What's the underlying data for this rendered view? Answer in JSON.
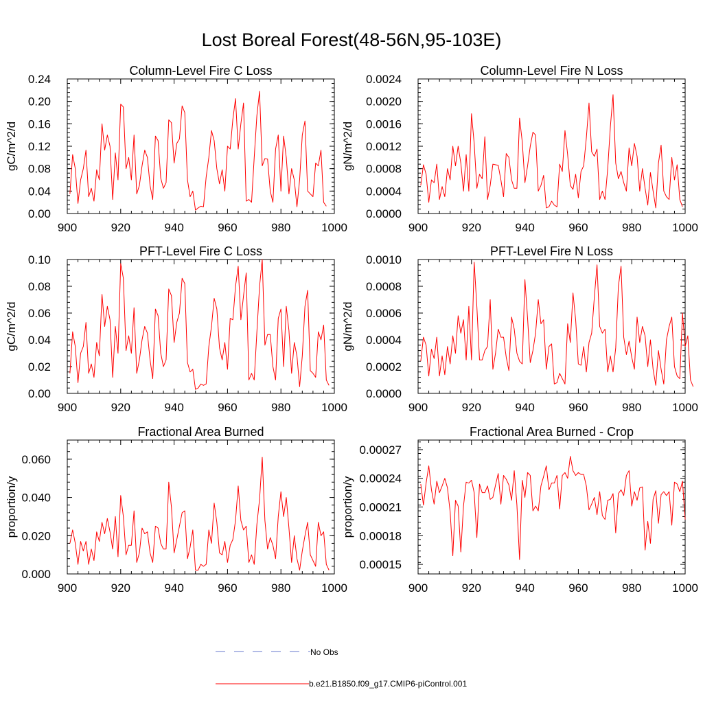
{
  "title": "Lost Boreal Forest(48-56N,95-103E)",
  "colors": {
    "model": "#ff0000",
    "obs": "#6677cc",
    "axis": "#000000"
  },
  "legend": {
    "obs_label": "No Obs",
    "model_label": "b.e21.B1850.f09_g17.CMIP6-piControl.001"
  },
  "chart_data": [
    {
      "type": "line",
      "title": "Column-Level Fire C Loss",
      "xlabel": "",
      "ylabel": "gC/m^2/d",
      "xlim": [
        900,
        1000
      ],
      "ylim": [
        0,
        0.24
      ],
      "xticks": [
        900,
        920,
        940,
        960,
        980,
        1000
      ],
      "xtick_labels": [
        "900",
        "920",
        "940",
        "960",
        "980",
        "1000"
      ],
      "yticks": [
        0,
        0.04,
        0.08,
        0.12,
        0.16,
        0.2,
        0.24
      ],
      "ytick_labels": [
        "0.00",
        "0.04",
        "0.08",
        "0.12",
        "0.16",
        "0.20",
        "0.24"
      ],
      "x_start": 901,
      "series": [
        {
          "name": "b.e21.B1850.f09_g17.CMIP6-piControl.001",
          "values": [
            0.035,
            0.105,
            0.08,
            0.018,
            0.06,
            0.08,
            0.113,
            0.03,
            0.045,
            0.022,
            0.078,
            0.06,
            0.16,
            0.113,
            0.14,
            0.12,
            0.025,
            0.108,
            0.06,
            0.195,
            0.19,
            0.08,
            0.1,
            0.06,
            0.14,
            0.035,
            0.05,
            0.085,
            0.113,
            0.1,
            0.05,
            0.025,
            0.138,
            0.13,
            0.063,
            0.045,
            0.055,
            0.167,
            0.162,
            0.09,
            0.125,
            0.133,
            0.192,
            0.18,
            0.06,
            0.03,
            0.04,
            0.006,
            0.01,
            0.013,
            0.012,
            0.065,
            0.1,
            0.148,
            0.13,
            0.08,
            0.053,
            0.078,
            0.04,
            0.12,
            0.115,
            0.168,
            0.205,
            0.115,
            0.16,
            0.197,
            0.022,
            0.025,
            0.02,
            0.1,
            0.175,
            0.218,
            0.085,
            0.098,
            0.097,
            0.04,
            0.02,
            0.115,
            0.14,
            0.04,
            0.138,
            0.1,
            0.035,
            0.08,
            0.06,
            0.012,
            0.06,
            0.14,
            0.165,
            0.04,
            0.035,
            0.03,
            0.09,
            0.085,
            0.113,
            0.02,
            0.013
          ]
        }
      ]
    },
    {
      "type": "line",
      "title": "Column-Level Fire N Loss",
      "xlabel": "",
      "ylabel": "gN/m^2/d",
      "xlim": [
        900,
        1000
      ],
      "ylim": [
        0,
        0.0024
      ],
      "xticks": [
        900,
        920,
        940,
        960,
        980,
        1000
      ],
      "xtick_labels": [
        "900",
        "920",
        "940",
        "960",
        "980",
        "1000"
      ],
      "yticks": [
        0,
        0.0004,
        0.0008,
        0.0012,
        0.0016,
        0.002,
        0.0024
      ],
      "ytick_labels": [
        "0.0000",
        "0.0004",
        "0.0008",
        "0.0012",
        "0.0016",
        "0.0020",
        "0.0024"
      ],
      "x_start": 901,
      "series": [
        {
          "name": "b.e21.B1850.f09_g17.CMIP6-piControl.001",
          "values": [
            0.0005,
            0.00087,
            0.0007,
            0.0002,
            0.0006,
            0.00055,
            0.00088,
            0.00025,
            0.00048,
            0.0003,
            0.0008,
            0.0006,
            0.0012,
            0.00085,
            0.0012,
            0.0009,
            0.0004,
            0.00105,
            0.0004,
            0.00178,
            0.00125,
            0.00045,
            0.0007,
            0.00062,
            0.00137,
            0.00025,
            0.0005,
            0.00088,
            0.00087,
            0.00086,
            0.0006,
            0.0003,
            0.00107,
            0.001,
            0.0006,
            0.00045,
            0.00045,
            0.0017,
            0.00128,
            0.00055,
            0.00085,
            0.0012,
            0.00145,
            0.0014,
            0.0004,
            0.0005,
            0.00068,
            0.0001,
            0.00012,
            0.00022,
            0.00015,
            0.00012,
            0.00088,
            0.00075,
            0.00148,
            0.00105,
            0.0005,
            0.00043,
            0.0007,
            0.00028,
            0.00075,
            0.00085,
            0.00135,
            0.00197,
            0.0011,
            0.00102,
            0.00115,
            0.00025,
            0.0004,
            0.00025,
            0.0008,
            0.00155,
            0.00212,
            0.0009,
            0.00062,
            0.00075,
            0.00055,
            0.0004,
            0.00117,
            0.00085,
            0.00125,
            0.00102,
            0.0004,
            0.0008,
            0.00045,
            0.00015,
            0.00073,
            0.0004,
            0.0001,
            0.0009,
            0.00122,
            0.0004,
            0.0003,
            0.00025,
            0.001,
            0.0006,
            0.00087,
            0.00025,
            0.00012
          ]
        }
      ]
    },
    {
      "type": "line",
      "title": "PFT-Level Fire C Loss",
      "xlabel": "",
      "ylabel": "gC/m^2/d",
      "xlim": [
        900,
        1000
      ],
      "ylim": [
        0,
        0.1
      ],
      "xticks": [
        900,
        920,
        940,
        960,
        980,
        1000
      ],
      "xtick_labels": [
        "900",
        "920",
        "940",
        "960",
        "980",
        "1000"
      ],
      "yticks": [
        0,
        0.02,
        0.04,
        0.06,
        0.08,
        0.1
      ],
      "ytick_labels": [
        "0.00",
        "0.02",
        "0.04",
        "0.06",
        "0.08",
        "0.10"
      ],
      "x_start": 901,
      "series": [
        {
          "name": "b.e21.B1850.f09_g17.CMIP6-piControl.001",
          "values": [
            0.015,
            0.046,
            0.035,
            0.008,
            0.03,
            0.035,
            0.053,
            0.015,
            0.022,
            0.012,
            0.038,
            0.028,
            0.074,
            0.05,
            0.065,
            0.055,
            0.012,
            0.05,
            0.03,
            0.097,
            0.086,
            0.032,
            0.043,
            0.03,
            0.064,
            0.015,
            0.025,
            0.04,
            0.05,
            0.045,
            0.025,
            0.011,
            0.063,
            0.058,
            0.03,
            0.02,
            0.025,
            0.078,
            0.073,
            0.038,
            0.053,
            0.06,
            0.086,
            0.082,
            0.023,
            0.016,
            0.018,
            0.003,
            0.004,
            0.007,
            0.006,
            0.007,
            0.035,
            0.05,
            0.071,
            0.063,
            0.034,
            0.025,
            0.038,
            0.018,
            0.056,
            0.055,
            0.08,
            0.095,
            0.055,
            0.073,
            0.09,
            0.01,
            0.015,
            0.01,
            0.046,
            0.08,
            0.1,
            0.036,
            0.044,
            0.044,
            0.02,
            0.01,
            0.056,
            0.063,
            0.02,
            0.065,
            0.047,
            0.015,
            0.038,
            0.028,
            0.005,
            0.028,
            0.065,
            0.077,
            0.017,
            0.015,
            0.012,
            0.046,
            0.04,
            0.051,
            0.01,
            0.006
          ]
        }
      ]
    },
    {
      "type": "line",
      "title": "PFT-Level Fire N Loss",
      "xlabel": "",
      "ylabel": "gN/m^2/d",
      "xlim": [
        900,
        1000
      ],
      "ylim": [
        0,
        0.001
      ],
      "xticks": [
        900,
        920,
        940,
        960,
        980,
        1000
      ],
      "xtick_labels": [
        "900",
        "920",
        "940",
        "960",
        "980",
        "1000"
      ],
      "yticks": [
        0,
        0.0002,
        0.0004,
        0.0006,
        0.0008,
        0.001
      ],
      "ytick_labels": [
        "0.0000",
        "0.0002",
        "0.0004",
        "0.0006",
        "0.0008",
        "0.0010"
      ],
      "x_start": 901,
      "series": [
        {
          "name": "b.e21.B1850.f09_g17.CMIP6-piControl.001",
          "values": [
            0.00024,
            0.00042,
            0.00036,
            0.00013,
            0.00033,
            0.00026,
            0.00042,
            0.00013,
            0.00028,
            0.00014,
            0.00035,
            0.00022,
            0.00043,
            0.0003,
            0.00058,
            0.00045,
            0.00055,
            0.00025,
            0.00065,
            0.00025,
            0.00098,
            0.00065,
            0.00025,
            0.00025,
            0.00032,
            0.00035,
            0.0007,
            0.00018,
            0.0003,
            0.00048,
            0.00042,
            0.00042,
            0.00027,
            0.00017,
            0.00057,
            0.00048,
            0.0003,
            0.00024,
            0.00022,
            0.00085,
            0.00056,
            0.00023,
            0.00032,
            0.00045,
            0.0007,
            0.00052,
            0.00055,
            0.00018,
            0.00035,
            0.00037,
            7e-05,
            8e-05,
            0.00015,
            0.00011,
            7e-05,
            0.00052,
            0.00038,
            0.00075,
            0.00055,
            0.00022,
            0.00021,
            0.00035,
            0.00016,
            0.00038,
            0.00045,
            0.00072,
            0.00096,
            0.0005,
            0.00045,
            0.00048,
            0.00016,
            0.00028,
            0.00016,
            0.00034,
            0.0008,
            0.00095,
            0.00042,
            0.00029,
            0.00039,
            0.00027,
            0.00018,
            0.00057,
            0.00038,
            0.0005,
            0.00043,
            0.0002,
            0.0004,
            0.00018,
            6e-05,
            0.00032,
            0.00018,
            7e-05,
            0.0004,
            0.0005,
            0.00057,
            0.0002,
            0.00013,
            0.00011,
            0.0006,
            0.00035,
            0.00043,
            0.0001,
            5e-05
          ]
        }
      ]
    },
    {
      "type": "line",
      "title": "Fractional Area Burned",
      "xlabel": "",
      "ylabel": "proportion/y",
      "xlim": [
        900,
        1000
      ],
      "ylim": [
        0,
        0.07
      ],
      "xticks": [
        900,
        920,
        940,
        960,
        980,
        1000
      ],
      "xtick_labels": [
        "900",
        "920",
        "940",
        "960",
        "980",
        "1000"
      ],
      "yticks": [
        0,
        0.02,
        0.04,
        0.06
      ],
      "ytick_labels": [
        "0.000",
        "0.020",
        "0.040",
        "0.060"
      ],
      "x_start": 901,
      "series": [
        {
          "name": "b.e21.B1850.f09_g17.CMIP6-piControl.001",
          "values": [
            0.016,
            0.023,
            0.016,
            0.005,
            0.017,
            0.012,
            0.017,
            0.005,
            0.013,
            0.007,
            0.022,
            0.017,
            0.027,
            0.021,
            0.029,
            0.022,
            0.013,
            0.03,
            0.009,
            0.041,
            0.03,
            0.01,
            0.015,
            0.015,
            0.033,
            0.006,
            0.011,
            0.024,
            0.021,
            0.022,
            0.011,
            0.006,
            0.025,
            0.024,
            0.016,
            0.013,
            0.013,
            0.048,
            0.035,
            0.011,
            0.018,
            0.025,
            0.032,
            0.033,
            0.008,
            0.014,
            0.023,
            0.002,
            0.002,
            0.005,
            0.004,
            0.005,
            0.023,
            0.016,
            0.037,
            0.027,
            0.011,
            0.01,
            0.017,
            0.006,
            0.015,
            0.018,
            0.028,
            0.046,
            0.028,
            0.023,
            0.025,
            0.006,
            0.01,
            0.005,
            0.026,
            0.039,
            0.061,
            0.028,
            0.013,
            0.019,
            0.015,
            0.008,
            0.03,
            0.043,
            0.03,
            0.04,
            0.024,
            0.006,
            0.02,
            0.008,
            0.002,
            0.012,
            0.02,
            0.027,
            0.01,
            0.007,
            0.004,
            0.027,
            0.02,
            0.022,
            0.005,
            0.002
          ]
        }
      ]
    },
    {
      "type": "line",
      "title": "Fractional Area Burned - Crop",
      "xlabel": "",
      "ylabel": "proportion/y",
      "xlim": [
        900,
        1000
      ],
      "ylim": [
        0.00014,
        0.00028
      ],
      "xticks": [
        900,
        920,
        940,
        960,
        980,
        1000
      ],
      "xtick_labels": [
        "900",
        "920",
        "940",
        "960",
        "980",
        "1000"
      ],
      "yticks": [
        0.00015,
        0.00018,
        0.00021,
        0.00024,
        0.00027
      ],
      "ytick_labels": [
        "0.00015",
        "0.00018",
        "0.00021",
        "0.00024",
        "0.00027"
      ],
      "x_start": 901,
      "series": [
        {
          "name": "b.e21.B1850.f09_g17.CMIP6-piControl.001",
          "values": [
            0.000234,
            0.000212,
            0.000235,
            0.000253,
            0.000228,
            0.000213,
            0.000237,
            0.000225,
            0.000232,
            0.00024,
            0.00023,
            0.000205,
            0.000159,
            0.000217,
            0.000211,
            0.000163,
            0.000211,
            0.000236,
            0.000235,
            0.000238,
            0.000225,
            0.000178,
            0.000234,
            0.000225,
            0.000225,
            0.000232,
            0.000218,
            0.00022,
            0.000233,
            0.000245,
            0.000213,
            0.000243,
            0.000239,
            0.000233,
            0.000217,
            0.000248,
            0.000212,
            0.000155,
            0.000238,
            0.00022,
            0.000246,
            0.000243,
            0.000206,
            0.000211,
            0.000206,
            0.000232,
            0.000242,
            0.000253,
            0.000228,
            0.000235,
            0.000235,
            0.000243,
            0.000208,
            0.000243,
            0.000246,
            0.00024,
            0.000263,
            0.000248,
            0.000243,
            0.000246,
            0.000244,
            0.000244,
            0.000232,
            0.000207,
            0.000213,
            0.00022,
            0.000202,
            0.000226,
            0.000201,
            0.000197,
            0.000217,
            0.000218,
            0.000224,
            0.000183,
            0.000224,
            0.000228,
            0.000222,
            0.000243,
            0.000248,
            0.000211,
            0.000226,
            0.000217,
            0.00023,
            0.000231,
            0.000165,
            0.000195,
            0.000172,
            0.000218,
            0.000227,
            0.000193,
            0.000223,
            0.000226,
            0.000222,
            0.000226,
            0.000191,
            0.000236,
            0.000234,
            0.000226,
            0.000237,
            0.000197
          ]
        }
      ]
    }
  ]
}
